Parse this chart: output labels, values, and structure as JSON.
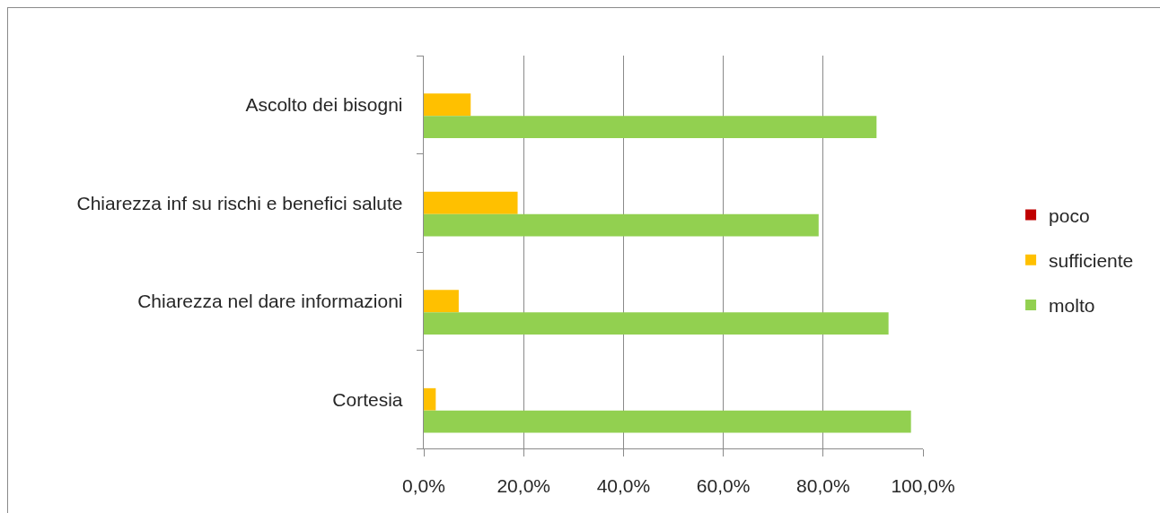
{
  "chart_data": {
    "type": "bar",
    "orientation": "horizontal",
    "categories": [
      "Ascolto dei bisogni",
      "Chiarezza inf su rischi e benefici salute",
      "Chiarezza nel dare informazioni",
      "Cortesia"
    ],
    "series": [
      {
        "name": "poco",
        "color": "#c00000",
        "values": [
          0,
          0,
          0,
          0
        ]
      },
      {
        "name": "sufficiente",
        "color": "#ffc000",
        "values": [
          9.4,
          18.8,
          7.0,
          2.4
        ]
      },
      {
        "name": "molto",
        "color": "#92d050",
        "values": [
          90.7,
          79.1,
          93.1,
          97.6
        ]
      }
    ],
    "xlim": [
      0,
      100
    ],
    "xticks": [
      {
        "value": 0,
        "label": "0,0%"
      },
      {
        "value": 20,
        "label": "20,0%"
      },
      {
        "value": 40,
        "label": "40,0%"
      },
      {
        "value": 60,
        "label": "60,0%"
      },
      {
        "value": 80,
        "label": "80,0%"
      },
      {
        "value": 100,
        "label": "100,0%"
      }
    ],
    "grid": "x",
    "legend": "right"
  }
}
